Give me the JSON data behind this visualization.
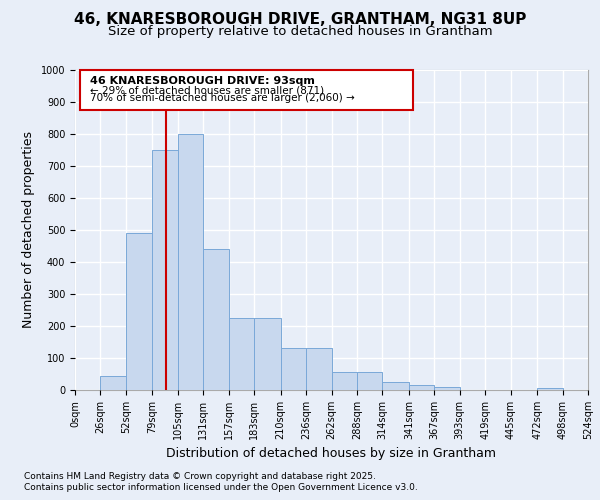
{
  "title1": "46, KNARESBOROUGH DRIVE, GRANTHAM, NG31 8UP",
  "title2": "Size of property relative to detached houses in Grantham",
  "xlabel": "Distribution of detached houses by size in Grantham",
  "ylabel": "Number of detached properties",
  "bin_edges": [
    0,
    26,
    52,
    79,
    105,
    131,
    157,
    183,
    210,
    236,
    262,
    288,
    314,
    341,
    367,
    393,
    419,
    445,
    472,
    498,
    524
  ],
  "bar_heights": [
    0,
    45,
    490,
    750,
    800,
    440,
    225,
    225,
    130,
    130,
    55,
    55,
    25,
    15,
    10,
    0,
    0,
    0,
    5,
    0
  ],
  "bar_color": "#c8d8ee",
  "bar_edge_color": "#7aa8d8",
  "property_size": 93,
  "red_line_color": "#cc0000",
  "annotation_box_color": "#cc0000",
  "annotation_text_line1": "46 KNARESBOROUGH DRIVE: 93sqm",
  "annotation_text_line2": "← 29% of detached houses are smaller (871)",
  "annotation_text_line3": "70% of semi-detached houses are larger (2,060) →",
  "ylim": [
    0,
    1000
  ],
  "xlim": [
    0,
    524
  ],
  "tick_labels": [
    "0sqm",
    "26sqm",
    "52sqm",
    "79sqm",
    "105sqm",
    "131sqm",
    "157sqm",
    "183sqm",
    "210sqm",
    "236sqm",
    "262sqm",
    "288sqm",
    "314sqm",
    "341sqm",
    "367sqm",
    "393sqm",
    "419sqm",
    "445sqm",
    "472sqm",
    "498sqm",
    "524sqm"
  ],
  "yticks": [
    0,
    100,
    200,
    300,
    400,
    500,
    600,
    700,
    800,
    900,
    1000
  ],
  "footer_line1": "Contains HM Land Registry data © Crown copyright and database right 2025.",
  "footer_line2": "Contains public sector information licensed under the Open Government Licence v3.0.",
  "bg_color": "#e8eef8",
  "plot_bg_color": "#e8eef8",
  "grid_color": "#ffffff",
  "title1_fontsize": 11,
  "title2_fontsize": 9.5,
  "axis_label_fontsize": 9,
  "tick_fontsize": 7,
  "footer_fontsize": 6.5
}
